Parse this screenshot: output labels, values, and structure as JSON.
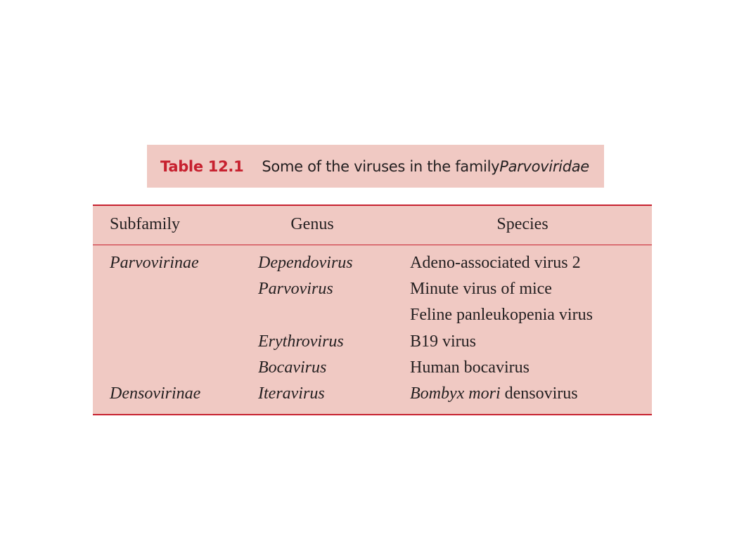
{
  "caption": {
    "label": "Table 12.1",
    "text": "Some of the viruses in the family ",
    "text_italic": "Parvoviridae"
  },
  "table": {
    "headers": [
      "Subfamily",
      "Genus",
      "Species"
    ],
    "rows": [
      {
        "subfamily": "Parvovirinae",
        "genus": "Dependovirus",
        "species": "Adeno-associated virus 2",
        "species_italic": ""
      },
      {
        "subfamily": "",
        "genus": "Parvovirus",
        "species": "Minute virus of mice",
        "species_italic": ""
      },
      {
        "subfamily": "",
        "genus": "",
        "species": "Feline panleukopenia virus",
        "species_italic": ""
      },
      {
        "subfamily": "",
        "genus": "Erythrovirus",
        "species": "B19 virus",
        "species_italic": ""
      },
      {
        "subfamily": "",
        "genus": "Bocavirus",
        "species": "Human bocavirus",
        "species_italic": ""
      },
      {
        "subfamily": "Densovirinae",
        "genus": "Iteravirus",
        "species": " densovirus",
        "species_italic": "Bombyx mori"
      }
    ]
  },
  "colors": {
    "background_fill": "#f0c9c3",
    "rule_and_label": "#c7212f",
    "text": "#231f20"
  }
}
